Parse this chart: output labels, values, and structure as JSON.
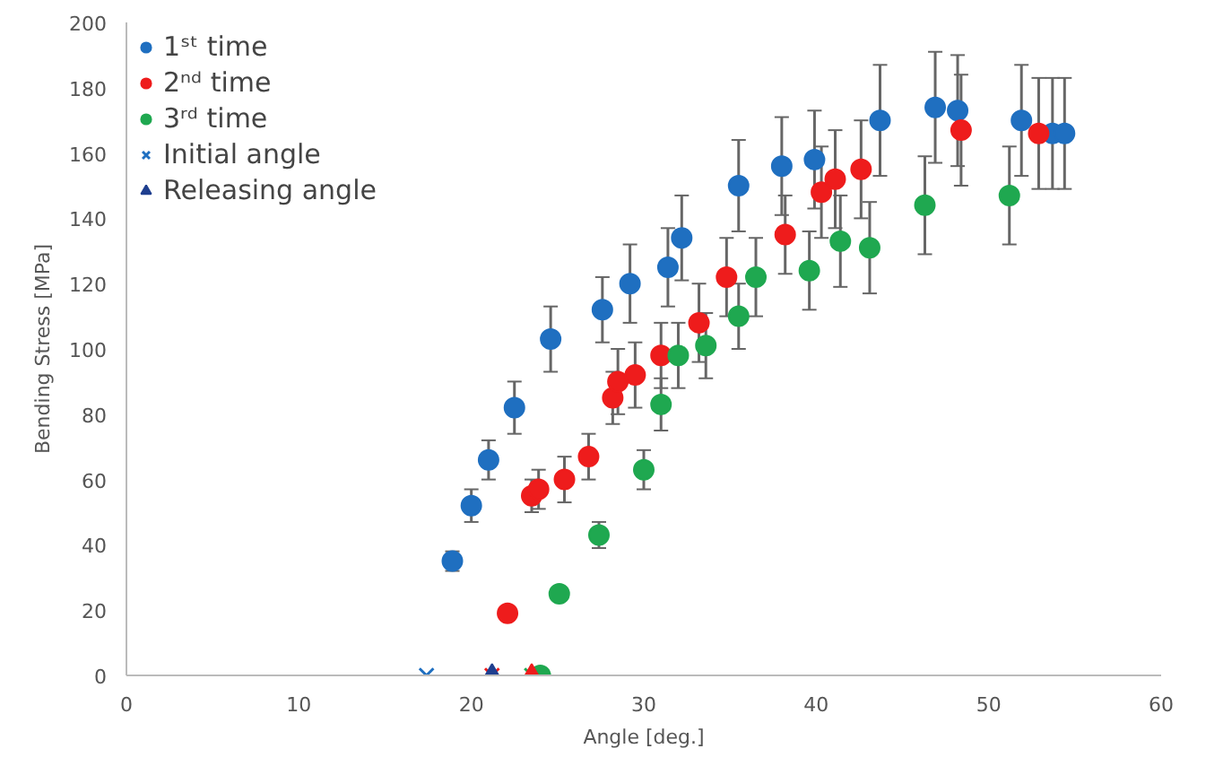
{
  "chart_data": {
    "type": "scatter",
    "xlabel": "Angle [deg.]",
    "ylabel": "Bending Stress [MPa]",
    "xlim": [
      0,
      60
    ],
    "xticks": [
      0,
      10,
      20,
      30,
      40,
      50,
      60
    ],
    "ylim": [
      0,
      200
    ],
    "yticks": [
      0,
      20,
      40,
      60,
      80,
      100,
      120,
      140,
      160,
      180,
      200
    ],
    "grid": false,
    "legend": "top left",
    "marker": "circle",
    "series": [
      {
        "name": "1ˢᵗ time",
        "color": "#1f6fc0",
        "x": [
          18.9,
          20.0,
          21.0,
          22.5,
          24.6,
          27.6,
          29.2,
          31.4,
          32.2,
          35.5,
          38.0,
          39.9,
          43.7,
          46.9,
          48.2,
          51.9,
          53.7,
          54.4
        ],
        "values": [
          35,
          52,
          66,
          82,
          103,
          112,
          120,
          125,
          134,
          150,
          156,
          158,
          170,
          174,
          173,
          170,
          166,
          166
        ],
        "errors": [
          3,
          5,
          6,
          8,
          10,
          10,
          12,
          12,
          13,
          14,
          15,
          15,
          17,
          17,
          17,
          17,
          17,
          17
        ]
      },
      {
        "name": "2ⁿᵈ time",
        "color": "#ee1c1c",
        "x": [
          22.1,
          23.5,
          23.9,
          25.4,
          26.8,
          28.2,
          28.5,
          29.5,
          31.0,
          33.2,
          34.8,
          38.2,
          40.3,
          41.1,
          42.6,
          48.4,
          52.9
        ],
        "values": [
          19,
          55,
          57,
          60,
          67,
          85,
          90,
          92,
          98,
          108,
          122,
          135,
          148,
          152,
          155,
          167,
          166
        ],
        "errors": [
          null,
          5,
          6,
          7,
          7,
          8,
          10,
          10,
          10,
          12,
          12,
          12,
          14,
          15,
          15,
          17,
          17
        ]
      },
      {
        "name": "3ʳᵈ time",
        "color": "#1fa850",
        "x": [
          24.0,
          25.1,
          27.4,
          30.0,
          31.0,
          32.0,
          33.6,
          35.5,
          36.5,
          39.6,
          41.4,
          43.1,
          46.3,
          51.2
        ],
        "values": [
          0,
          25,
          43,
          63,
          83,
          98,
          101,
          110,
          122,
          124,
          133,
          131,
          144,
          147
        ],
        "errors": [
          null,
          null,
          4,
          6,
          8,
          10,
          10,
          10,
          12,
          12,
          14,
          14,
          15,
          15
        ]
      },
      {
        "name": "Initial angle",
        "type": "scatter",
        "marker": "cross",
        "colors": [
          "#1f6fc0",
          "#ee1c1c",
          "#1fa850"
        ],
        "x": [
          17.4,
          21.2,
          23.5
        ],
        "values": [
          0,
          0,
          0
        ]
      },
      {
        "name": "Releasing angle",
        "type": "scatter",
        "marker": "triangle",
        "colors": [
          "#1f3f8f",
          "#ee1c1c"
        ],
        "x": [
          21.2,
          23.5
        ],
        "values": [
          0,
          0
        ]
      }
    ]
  }
}
